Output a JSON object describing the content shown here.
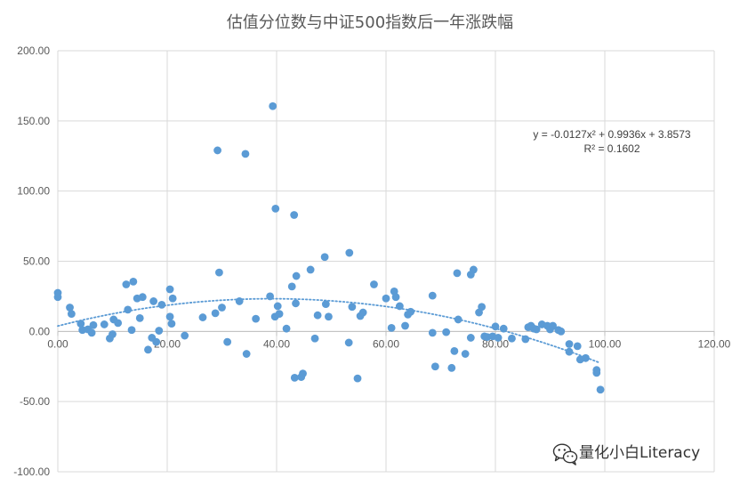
{
  "chart_data": {
    "type": "scatter",
    "title": "估值分位数与中证500指数后一年涨跌幅",
    "xlim": [
      0,
      120
    ],
    "ylim": [
      -100,
      200
    ],
    "x_ticks": [
      "0.00",
      "20.00",
      "40.00",
      "60.00",
      "80.00",
      "100.00",
      "120.00"
    ],
    "y_ticks": [
      "200.00",
      "150.00",
      "100.00",
      "50.00",
      "0.00",
      "-50.00",
      "-100.00"
    ],
    "grid": true,
    "point_color": "#5B9BD5",
    "trendline": {
      "type": "polynomial",
      "order": 2,
      "coefficients": [
        -0.0127,
        0.9936,
        3.8573
      ],
      "x_range": [
        0,
        99
      ],
      "equation_label": "y = -0.0127x² + 0.9936x + 3.8573",
      "r2_label": "R² = 0.1602",
      "color": "#5B9BD5",
      "style": "dotted"
    },
    "points": [
      [
        0.0,
        27.5
      ],
      [
        0.0,
        24.5
      ],
      [
        2.2,
        17
      ],
      [
        2.5,
        12.5
      ],
      [
        4.2,
        5.5
      ],
      [
        4.5,
        1
      ],
      [
        5.5,
        1.5
      ],
      [
        6.2,
        -1
      ],
      [
        6.5,
        4.5
      ],
      [
        8.5,
        5
      ],
      [
        9.5,
        -5
      ],
      [
        10,
        -2
      ],
      [
        10.2,
        8.5
      ],
      [
        11,
        6
      ],
      [
        12.5,
        33.5
      ],
      [
        12.8,
        15.5
      ],
      [
        13.5,
        1
      ],
      [
        13.8,
        35.5
      ],
      [
        14.5,
        23.5
      ],
      [
        15,
        9.5
      ],
      [
        15.5,
        24.5
      ],
      [
        16.5,
        -13
      ],
      [
        17.2,
        -4.5
      ],
      [
        17.5,
        21.5
      ],
      [
        18,
        -7.5
      ],
      [
        18.5,
        0.5
      ],
      [
        19,
        19
      ],
      [
        20.5,
        30
      ],
      [
        20.5,
        10.5
      ],
      [
        20.8,
        5.5
      ],
      [
        21,
        23.5
      ],
      [
        23.2,
        -3
      ],
      [
        26.5,
        10
      ],
      [
        28.8,
        13
      ],
      [
        29.2,
        129
      ],
      [
        29.5,
        42
      ],
      [
        30,
        17
      ],
      [
        31,
        -7.5
      ],
      [
        33.2,
        21.5
      ],
      [
        34.3,
        126.5
      ],
      [
        34.5,
        -16
      ],
      [
        36.2,
        9
      ],
      [
        38.8,
        25
      ],
      [
        39.3,
        160.5
      ],
      [
        39.7,
        10.5
      ],
      [
        39.8,
        87.5
      ],
      [
        40.2,
        18
      ],
      [
        40.5,
        12.5
      ],
      [
        41.8,
        2
      ],
      [
        42.8,
        32
      ],
      [
        43.2,
        83
      ],
      [
        43.3,
        -33
      ],
      [
        43.5,
        20
      ],
      [
        43.6,
        39.5
      ],
      [
        44.5,
        -32.5
      ],
      [
        44.8,
        -30
      ],
      [
        46.2,
        44
      ],
      [
        47,
        -5
      ],
      [
        47.5,
        11.5
      ],
      [
        48.8,
        53
      ],
      [
        49,
        19.5
      ],
      [
        49.5,
        10.5
      ],
      [
        53.2,
        -8
      ],
      [
        53.3,
        56
      ],
      [
        53.8,
        17.5
      ],
      [
        54.8,
        -33.5
      ],
      [
        55.3,
        11
      ],
      [
        55.8,
        13.5
      ],
      [
        57.8,
        33.5
      ],
      [
        60,
        23.5
      ],
      [
        61,
        2.5
      ],
      [
        61.5,
        28.5
      ],
      [
        61.8,
        24.5
      ],
      [
        62.5,
        18
      ],
      [
        63.5,
        4
      ],
      [
        64,
        12
      ],
      [
        64.5,
        14
      ],
      [
        68.5,
        25.5
      ],
      [
        68.5,
        -1
      ],
      [
        69,
        -25
      ],
      [
        71,
        -0.5
      ],
      [
        72,
        -26
      ],
      [
        72.5,
        -14
      ],
      [
        73,
        41.5
      ],
      [
        73.2,
        8.5
      ],
      [
        74.5,
        -16
      ],
      [
        75.5,
        -4.5
      ],
      [
        75.5,
        40.5
      ],
      [
        76,
        44
      ],
      [
        77,
        13.5
      ],
      [
        77.5,
        17.5
      ],
      [
        78,
        -3.5
      ],
      [
        78.5,
        -4
      ],
      [
        79.5,
        -3.5
      ],
      [
        80,
        3.5
      ],
      [
        80.5,
        -4.5
      ],
      [
        81.5,
        2
      ],
      [
        83,
        -5
      ],
      [
        85.5,
        -5.5
      ],
      [
        86,
        3
      ],
      [
        86.5,
        4
      ],
      [
        87,
        2
      ],
      [
        87.5,
        1.5
      ],
      [
        88.5,
        5
      ],
      [
        89.5,
        4
      ],
      [
        90,
        1.5
      ],
      [
        90.5,
        4
      ],
      [
        91.5,
        1
      ],
      [
        92,
        0
      ],
      [
        93.5,
        -9
      ],
      [
        93.5,
        -14.5
      ],
      [
        95,
        -10.5
      ],
      [
        95.5,
        -20
      ],
      [
        96.5,
        -19
      ],
      [
        98.5,
        -29.5
      ],
      [
        98.5,
        -27.5
      ],
      [
        99.2,
        -41.5
      ]
    ]
  },
  "watermark": {
    "icon": "wechat-icon",
    "text": "量化小白Literacy"
  }
}
